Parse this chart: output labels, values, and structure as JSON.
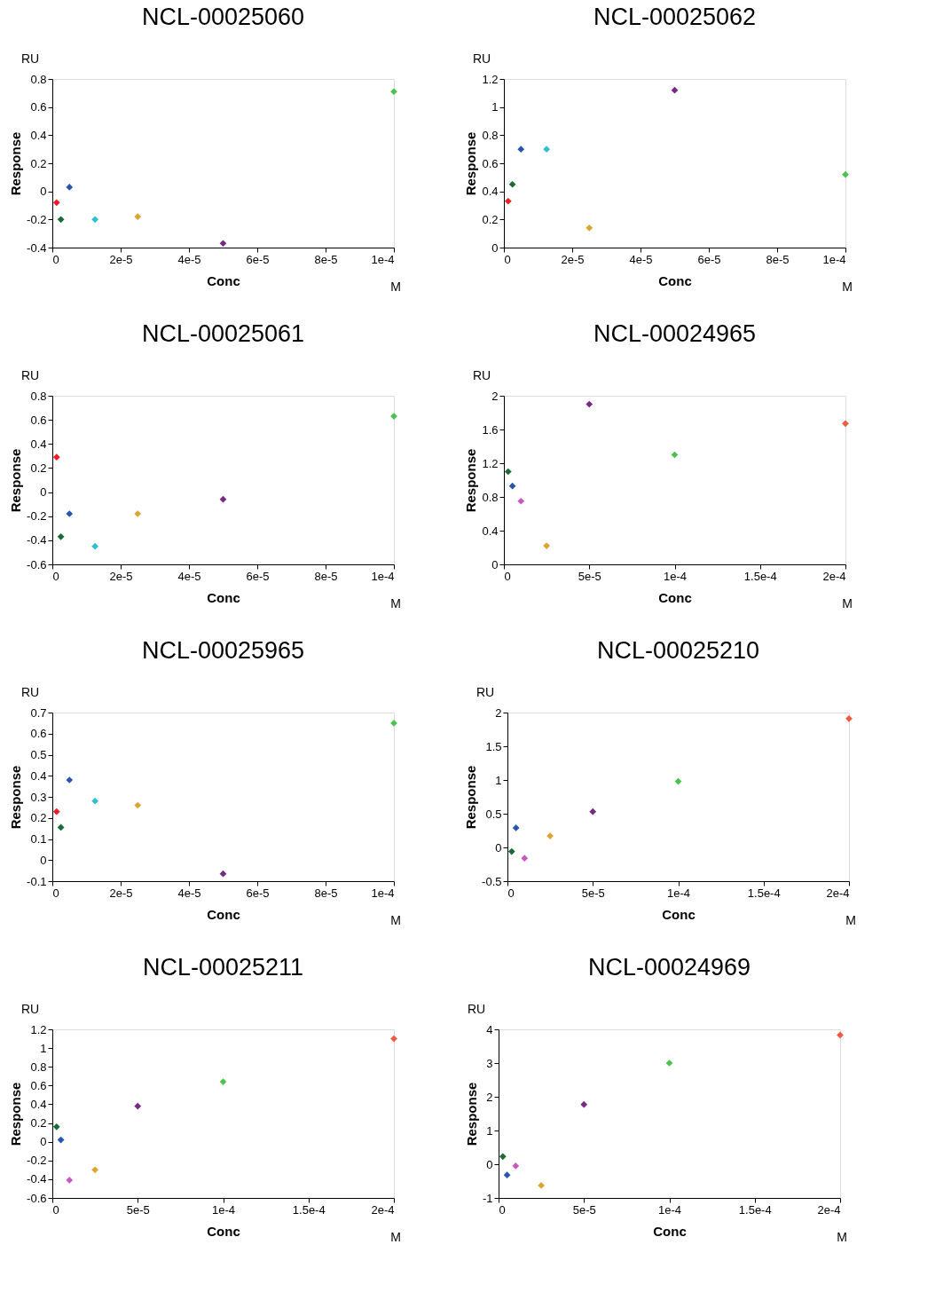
{
  "chart_data": [
    {
      "type": "scatter",
      "title": "NCL-00025060",
      "xlabel": "Conc",
      "ylabel": "Response",
      "annotations": [
        "RU",
        "M"
      ],
      "marker": "diamond",
      "grid": false,
      "x": [
        1.25e-06,
        2.5e-06,
        5e-06,
        1.25e-05,
        2.5e-05,
        5e-05,
        0.0001
      ],
      "series": [
        {
          "values": [
            -0.08,
            -0.2,
            0.03,
            -0.2,
            -0.18,
            -0.37,
            0.71
          ],
          "colors": [
            "#ee1c25",
            "#1a6b35",
            "#2b55a8",
            "#2fbfd0",
            "#dba532",
            "#762a82",
            "#4cc24c"
          ]
        }
      ],
      "xlim": [
        0,
        0.0001
      ],
      "xticks": [
        0,
        {
          "value": 2e-05,
          "label": "2e-5"
        },
        {
          "value": 4e-05,
          "label": "4e-5"
        },
        {
          "value": 6e-05,
          "label": "6e-5"
        },
        {
          "value": 8e-05,
          "label": "8e-5"
        },
        {
          "value": 0.0001,
          "label": "1e-4"
        }
      ],
      "ylim": [
        -0.4,
        0.8
      ],
      "yticks": [
        -0.4,
        -0.2,
        0,
        0.2,
        0.4,
        0.6,
        0.8
      ]
    },
    {
      "type": "scatter",
      "title": "NCL-00025062",
      "xlabel": "Conc",
      "ylabel": "Response",
      "annotations": [
        "RU",
        "M"
      ],
      "marker": "diamond",
      "grid": false,
      "x": [
        1.25e-06,
        2.5e-06,
        5e-06,
        1.25e-05,
        2.5e-05,
        5e-05,
        0.0001
      ],
      "series": [
        {
          "values": [
            0.33,
            0.45,
            0.7,
            0.7,
            0.14,
            1.12,
            0.52
          ],
          "colors": [
            "#ee1c25",
            "#1a6b35",
            "#2b55a8",
            "#2fbfd0",
            "#dba532",
            "#762a82",
            "#4cc24c"
          ]
        }
      ],
      "xlim": [
        0,
        0.0001
      ],
      "xticks": [
        0,
        {
          "value": 2e-05,
          "label": "2e-5"
        },
        {
          "value": 4e-05,
          "label": "4e-5"
        },
        {
          "value": 6e-05,
          "label": "6e-5"
        },
        {
          "value": 8e-05,
          "label": "8e-5"
        },
        {
          "value": 0.0001,
          "label": "1e-4"
        }
      ],
      "ylim": [
        0,
        1.2
      ],
      "yticks": [
        0,
        0.2,
        0.4,
        0.6,
        0.8,
        1,
        1.2
      ]
    },
    {
      "type": "scatter",
      "title": "NCL-00025061",
      "xlabel": "Conc",
      "ylabel": "Response",
      "annotations": [
        "RU",
        "M"
      ],
      "marker": "diamond",
      "grid": false,
      "x": [
        1.25e-06,
        2.5e-06,
        5e-06,
        1.25e-05,
        2.5e-05,
        5e-05,
        0.0001
      ],
      "series": [
        {
          "values": [
            0.29,
            -0.37,
            -0.18,
            -0.45,
            -0.18,
            -0.06,
            0.63
          ],
          "colors": [
            "#ee1c25",
            "#1a6b35",
            "#2b55a8",
            "#2fbfd0",
            "#dba532",
            "#762a82",
            "#4cc24c"
          ]
        }
      ],
      "xlim": [
        0,
        0.0001
      ],
      "xticks": [
        0,
        {
          "value": 2e-05,
          "label": "2e-5"
        },
        {
          "value": 4e-05,
          "label": "4e-5"
        },
        {
          "value": 6e-05,
          "label": "6e-5"
        },
        {
          "value": 8e-05,
          "label": "8e-5"
        },
        {
          "value": 0.0001,
          "label": "1e-4"
        }
      ],
      "ylim": [
        -0.6,
        0.8
      ],
      "yticks": [
        -0.6,
        -0.4,
        -0.2,
        0,
        0.2,
        0.4,
        0.6,
        0.8
      ]
    },
    {
      "type": "scatter",
      "title": "NCL-00024965",
      "xlabel": "Conc",
      "ylabel": "Response",
      "annotations": [
        "RU",
        "M"
      ],
      "marker": "diamond",
      "grid": false,
      "x": [
        2.5e-06,
        5e-06,
        1e-05,
        2.5e-05,
        5e-05,
        0.0001,
        0.0002
      ],
      "series": [
        {
          "values": [
            1.1,
            0.93,
            0.75,
            0.22,
            1.9,
            1.3,
            1.67
          ],
          "colors": [
            "#1a6b35",
            "#2b55a8",
            "#c858c0",
            "#dba532",
            "#762a82",
            "#4cc24c",
            "#f05a40"
          ]
        }
      ],
      "xlim": [
        0,
        0.0002
      ],
      "xticks": [
        0,
        {
          "value": 5e-05,
          "label": "5e-5"
        },
        {
          "value": 0.0001,
          "label": "1e-4"
        },
        {
          "value": 0.00015,
          "label": "1.5e-4"
        },
        {
          "value": 0.0002,
          "label": "2e-4"
        }
      ],
      "ylim": [
        0,
        2
      ],
      "yticks": [
        0,
        0.4,
        0.8,
        1.2,
        1.6,
        2
      ]
    },
    {
      "type": "scatter",
      "title": "NCL-00025965",
      "xlabel": "Conc",
      "ylabel": "Response",
      "annotations": [
        "RU",
        "M"
      ],
      "marker": "diamond",
      "grid": false,
      "x": [
        1.25e-06,
        2.5e-06,
        5e-06,
        1.25e-05,
        2.5e-05,
        5e-05,
        0.0001
      ],
      "series": [
        {
          "values": [
            0.23,
            0.155,
            0.38,
            0.28,
            0.26,
            -0.065,
            0.65
          ],
          "colors": [
            "#ee1c25",
            "#1a6b35",
            "#2b55a8",
            "#2fbfd0",
            "#dba532",
            "#762a82",
            "#4cc24c"
          ]
        }
      ],
      "xlim": [
        0,
        0.0001
      ],
      "xticks": [
        0,
        {
          "value": 2e-05,
          "label": "2e-5"
        },
        {
          "value": 4e-05,
          "label": "4e-5"
        },
        {
          "value": 6e-05,
          "label": "6e-5"
        },
        {
          "value": 8e-05,
          "label": "8e-5"
        },
        {
          "value": 0.0001,
          "label": "1e-4"
        }
      ],
      "ylim": [
        -0.1,
        0.7
      ],
      "yticks": [
        -0.1,
        0,
        0.1,
        0.2,
        0.3,
        0.4,
        0.5,
        0.6,
        0.7
      ]
    },
    {
      "type": "scatter",
      "title": "NCL-00025210",
      "xlabel": "Conc",
      "ylabel": "Response",
      "annotations": [
        "RU",
        "M"
      ],
      "marker": "diamond",
      "grid": false,
      "x": [
        2.5e-06,
        5e-06,
        1e-05,
        2.5e-05,
        5e-05,
        0.0001,
        0.0002
      ],
      "series": [
        {
          "values": [
            -0.06,
            0.29,
            -0.16,
            0.17,
            0.53,
            0.98,
            1.91
          ],
          "colors": [
            "#1a6b35",
            "#2b55a8",
            "#c858c0",
            "#dba532",
            "#762a82",
            "#4cc24c",
            "#f05a40"
          ]
        }
      ],
      "xlim": [
        0,
        0.0002
      ],
      "xticks": [
        0,
        {
          "value": 5e-05,
          "label": "5e-5"
        },
        {
          "value": 0.0001,
          "label": "1e-4"
        },
        {
          "value": 0.00015,
          "label": "1.5e-4"
        },
        {
          "value": 0.0002,
          "label": "2e-4"
        }
      ],
      "ylim": [
        -0.5,
        2
      ],
      "yticks": [
        -0.5,
        0,
        0.5,
        1,
        1.5,
        2
      ]
    },
    {
      "type": "scatter",
      "title": "NCL-00025211",
      "xlabel": "Conc",
      "ylabel": "Response",
      "annotations": [
        "RU",
        "M"
      ],
      "marker": "diamond",
      "grid": false,
      "x": [
        2.5e-06,
        5e-06,
        1e-05,
        2.5e-05,
        5e-05,
        0.0001,
        0.0002
      ],
      "series": [
        {
          "values": [
            0.16,
            0.02,
            -0.41,
            -0.3,
            0.38,
            0.64,
            1.1
          ],
          "colors": [
            "#1a6b35",
            "#2b55a8",
            "#c858c0",
            "#dba532",
            "#762a82",
            "#4cc24c",
            "#f05a40"
          ]
        }
      ],
      "xlim": [
        0,
        0.0002
      ],
      "xticks": [
        0,
        {
          "value": 5e-05,
          "label": "5e-5"
        },
        {
          "value": 0.0001,
          "label": "1e-4"
        },
        {
          "value": 0.00015,
          "label": "1.5e-4"
        },
        {
          "value": 0.0002,
          "label": "2e-4"
        }
      ],
      "ylim": [
        -0.6,
        1.2
      ],
      "yticks": [
        -0.6,
        -0.4,
        -0.2,
        0,
        0.2,
        0.4,
        0.6,
        0.8,
        1,
        1.2
      ]
    },
    {
      "type": "scatter",
      "title": "NCL-00024969",
      "xlabel": "Conc",
      "ylabel": "Response",
      "annotations": [
        "RU",
        "M"
      ],
      "marker": "diamond",
      "grid": false,
      "x": [
        2.5e-06,
        5e-06,
        1e-05,
        2.5e-05,
        5e-05,
        0.0001,
        0.0002
      ],
      "series": [
        {
          "values": [
            0.23,
            -0.32,
            -0.05,
            -0.63,
            1.77,
            3.0,
            3.83
          ],
          "colors": [
            "#1a6b35",
            "#2b55a8",
            "#c858c0",
            "#dba532",
            "#762a82",
            "#4cc24c",
            "#f05a40"
          ]
        }
      ],
      "xlim": [
        0,
        0.0002
      ],
      "xticks": [
        0,
        {
          "value": 5e-05,
          "label": "5e-5"
        },
        {
          "value": 0.0001,
          "label": "1e-4"
        },
        {
          "value": 0.00015,
          "label": "1.5e-4"
        },
        {
          "value": 0.0002,
          "label": "2e-4"
        }
      ],
      "ylim": [
        -1,
        4
      ],
      "yticks": [
        -1,
        0,
        1,
        2,
        3,
        4
      ]
    }
  ]
}
